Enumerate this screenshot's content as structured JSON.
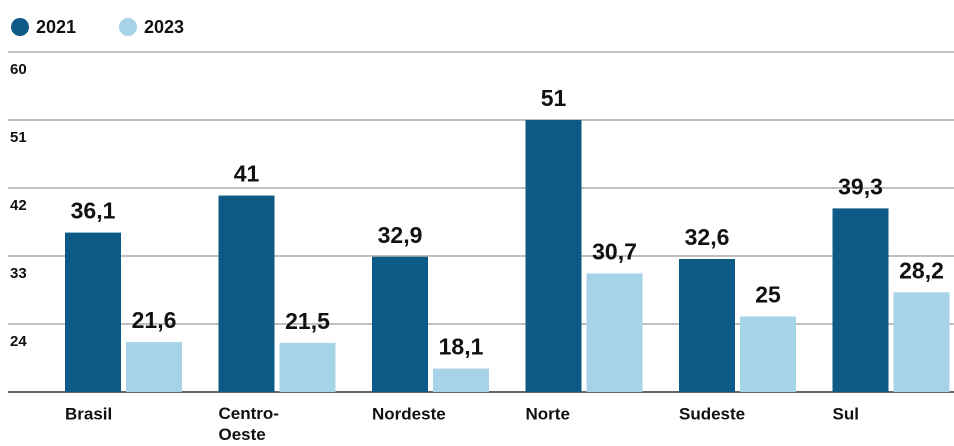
{
  "chart_data": {
    "type": "bar",
    "categories": [
      "Brasil",
      "Centro-Oeste",
      "Nordeste",
      "Norte",
      "Sudeste",
      "Sul"
    ],
    "series": [
      {
        "name": "2021",
        "color": "#0d5a86",
        "values": [
          36.1,
          41,
          32.9,
          51,
          32.6,
          39.3
        ],
        "value_labels": [
          "36,1",
          "41",
          "32,9",
          "51",
          "32,6",
          "39,3"
        ]
      },
      {
        "name": "2023",
        "color": "#a7d3e8",
        "values": [
          21.6,
          21.5,
          18.1,
          30.7,
          25,
          28.2
        ],
        "value_labels": [
          "21,6",
          "21,5",
          "18,1",
          "30,7",
          "25",
          "28,2"
        ]
      }
    ],
    "ylim": [
      15,
      60
    ],
    "yticks": [
      24,
      33,
      42,
      51,
      60
    ],
    "grid": true,
    "legend": "top-left"
  }
}
